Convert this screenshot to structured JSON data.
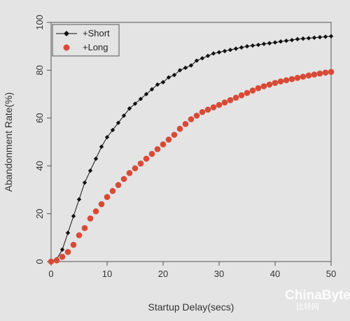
{
  "chart_data": {
    "type": "line",
    "title": "",
    "xlabel": "Startup Delay(secs)",
    "ylabel": "Abandonment Rate(%)",
    "xlim": [
      0,
      50
    ],
    "ylim": [
      0,
      100
    ],
    "xticks": [
      0,
      10,
      20,
      30,
      40,
      50
    ],
    "yticks": [
      0,
      20,
      40,
      60,
      80,
      100
    ],
    "grid": false,
    "legend_position": "top-left",
    "series": [
      {
        "name": "+Short",
        "color": "#111111",
        "marker": "diamond",
        "line": true,
        "x": [
          0,
          1,
          2,
          3,
          4,
          5,
          6,
          7,
          8,
          9,
          10,
          11,
          12,
          13,
          14,
          15,
          16,
          17,
          18,
          19,
          20,
          21,
          22,
          23,
          24,
          25,
          26,
          27,
          28,
          29,
          30,
          31,
          32,
          33,
          34,
          35,
          36,
          37,
          38,
          39,
          40,
          41,
          42,
          43,
          44,
          45,
          46,
          47,
          48,
          49,
          50
        ],
        "values": [
          0,
          1,
          5,
          12,
          19,
          26,
          33,
          38,
          43,
          48,
          52,
          55,
          58,
          61,
          64,
          66,
          68,
          70,
          72,
          74,
          75,
          77,
          78,
          80,
          81,
          82,
          84,
          85,
          86,
          87,
          87.5,
          88,
          88.5,
          89,
          89.5,
          90,
          90.3,
          90.6,
          91,
          91.3,
          91.6,
          92,
          92.3,
          92.6,
          93,
          93.2,
          93.4,
          93.6,
          93.8,
          94,
          94.2
        ]
      },
      {
        "name": "+Long",
        "color": "#d84a36",
        "marker": "circle",
        "line": false,
        "x": [
          0,
          1,
          2,
          3,
          4,
          5,
          6,
          7,
          8,
          9,
          10,
          11,
          12,
          13,
          14,
          15,
          16,
          17,
          18,
          19,
          20,
          21,
          22,
          23,
          24,
          25,
          26,
          27,
          28,
          29,
          30,
          31,
          32,
          33,
          34,
          35,
          36,
          37,
          38,
          39,
          40,
          41,
          42,
          43,
          44,
          45,
          46,
          47,
          48,
          49,
          50
        ],
        "values": [
          0,
          0.5,
          2,
          4,
          7,
          11,
          14,
          18,
          21,
          24,
          27,
          29.5,
          32,
          34.5,
          37,
          39,
          41,
          43,
          45,
          47,
          49,
          51,
          53,
          55.5,
          57.5,
          59.5,
          61,
          62.5,
          63.5,
          64.5,
          65.5,
          66.5,
          67.5,
          68.5,
          69.5,
          70.5,
          71.5,
          72.5,
          73.3,
          74,
          74.7,
          75.3,
          75.8,
          76.3,
          76.8,
          77.3,
          77.8,
          78.2,
          78.6,
          79,
          79.3
        ]
      }
    ]
  },
  "watermark": {
    "text": "ChinaByte",
    "subtext": "比特网"
  }
}
